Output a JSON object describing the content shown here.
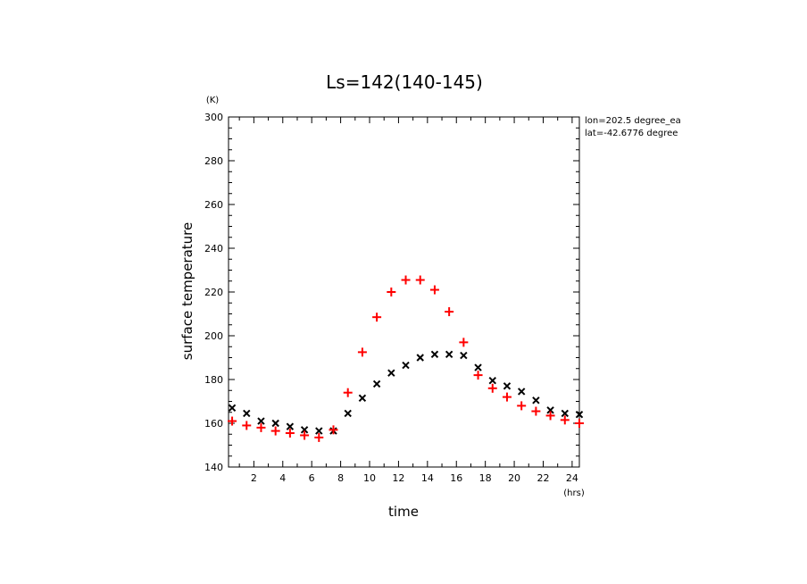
{
  "chart_data": {
    "type": "scatter",
    "title": "Ls=142(140-145)",
    "xlabel": "time",
    "ylabel": "surface temperature",
    "x_unit": "(hrs)",
    "y_unit": "(K)",
    "xlim": [
      0.25,
      24.5
    ],
    "ylim": [
      140,
      300
    ],
    "xticks": [
      2,
      4,
      6,
      8,
      10,
      12,
      14,
      16,
      18,
      20,
      22,
      24
    ],
    "yticks": [
      140,
      160,
      180,
      200,
      220,
      240,
      260,
      280,
      300
    ],
    "annotations": [
      "lon=202.5 degree_ea",
      "lat=-42.6776 degree"
    ],
    "series": [
      {
        "name": "series-black-x",
        "marker": "x",
        "color": "#000000",
        "x": [
          0.5,
          1.5,
          2.5,
          3.5,
          4.5,
          5.5,
          6.5,
          7.5,
          8.5,
          9.5,
          10.5,
          11.5,
          12.5,
          13.5,
          14.5,
          15.5,
          16.5,
          17.5,
          18.5,
          19.5,
          20.5,
          21.5,
          22.5,
          23.5,
          24.5
        ],
        "values": [
          167,
          164.5,
          161,
          160,
          158.5,
          157,
          156.5,
          156.5,
          164.5,
          171.5,
          178,
          183,
          186.5,
          190,
          191.5,
          191.5,
          191,
          185.5,
          179.5,
          177,
          174.5,
          170.5,
          166,
          164.5,
          164
        ]
      },
      {
        "name": "series-red-plus",
        "marker": "+",
        "color": "#ff0000",
        "x": [
          0.5,
          1.5,
          2.5,
          3.5,
          4.5,
          5.5,
          6.5,
          7.5,
          8.5,
          9.5,
          10.5,
          11.5,
          12.5,
          13.5,
          14.5,
          15.5,
          16.5,
          17.5,
          18.5,
          19.5,
          20.5,
          21.5,
          22.5,
          23.5,
          24.5
        ],
        "values": [
          161,
          159,
          158,
          156.5,
          155.5,
          154.5,
          153.5,
          157,
          174,
          192.5,
          208.5,
          220,
          225.5,
          225.5,
          221,
          211,
          197,
          182,
          176,
          172,
          168,
          165.5,
          163.5,
          161.5,
          160
        ]
      }
    ]
  }
}
